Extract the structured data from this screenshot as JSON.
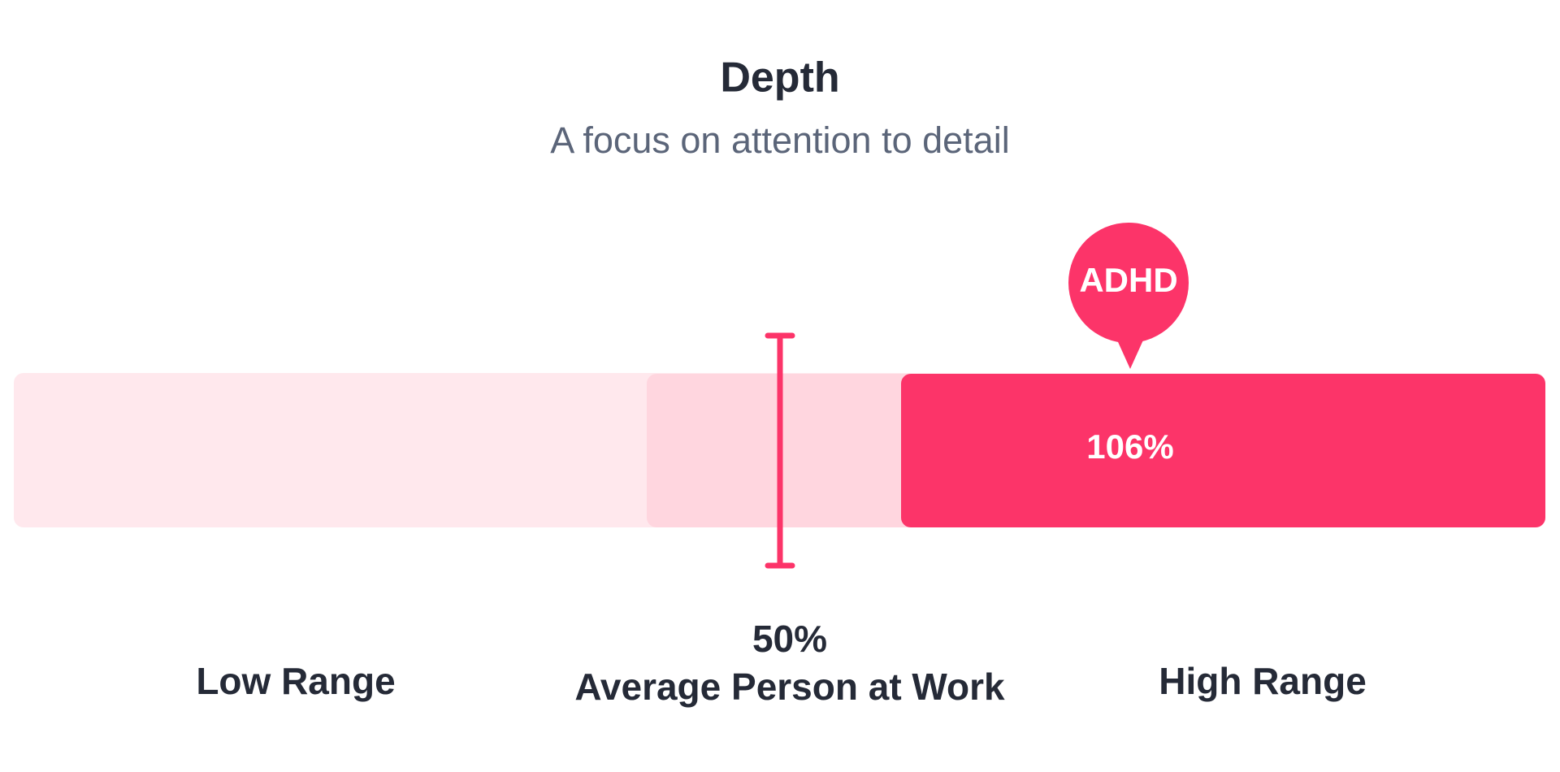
{
  "header": {
    "title": "Depth",
    "subtitle": "A focus on attention to detail"
  },
  "scale": {
    "low_label": "Low Range",
    "average": {
      "value": "50%",
      "label": "Average Person at Work"
    },
    "high_label": "High Range"
  },
  "marker": {
    "label": "ADHD",
    "value": "106%"
  }
}
